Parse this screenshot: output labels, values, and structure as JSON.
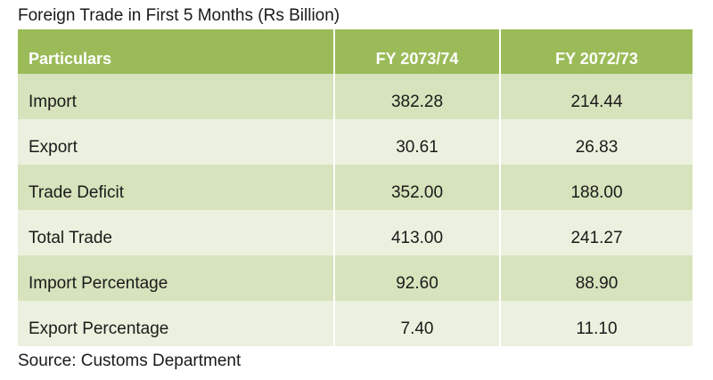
{
  "title": "Foreign Trade in First 5 Months (Rs Billion)",
  "table": {
    "headers": [
      "Particulars",
      "FY 2073/74",
      "FY 2072/73"
    ],
    "rows": [
      [
        "Import",
        "382.28",
        "214.44"
      ],
      [
        "Export",
        "30.61",
        "26.83"
      ],
      [
        "Trade Deficit",
        "352.00",
        "188.00"
      ],
      [
        "Total Trade",
        "413.00",
        "241.27"
      ],
      [
        "Import Percentage",
        "92.60",
        "88.90"
      ],
      [
        "Export Percentage",
        "7.40",
        "11.10"
      ]
    ]
  },
  "source": "Source: Customs Department",
  "colors": {
    "header_bg": "#9bbb59",
    "row_dark": "#d6e3bc",
    "row_light": "#ebf1de",
    "header_text": "#ffffff"
  }
}
